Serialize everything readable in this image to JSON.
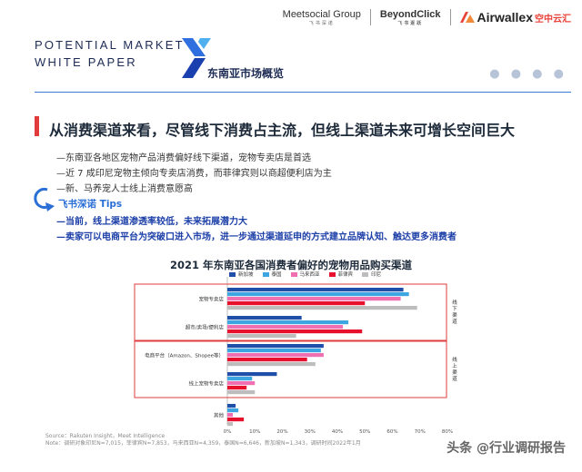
{
  "header": {
    "white_paper_line1": "POTENTIAL MARKET",
    "white_paper_line2": "WHITE PAPER",
    "section_title": "东南亚市场概览",
    "logos": {
      "meetsocial": "Meetsocial Group",
      "meetsocial_sub": "飞书深诺",
      "beyondclick": "BeyondClick",
      "beyondclick_sub": "飞书逐跃",
      "airwallex": "Airwallex",
      "airwallex_cn": "空中云汇"
    },
    "accent_color": "#3a7bd5",
    "headline_bar_color": "#e23b3b"
  },
  "headline": "从消费渠道来看，尽管线下消费占主流，但线上渠道未来可增长空间巨大",
  "bullets": [
    "—东南亚各地区宠物产品消费偏好线下渠道，宠物专卖店是首选",
    "—近 7 成印尼宠物主倾向专卖店消费，而菲律宾则以商超便利店为主",
    "—新、马养宠人士线上消费意愿高"
  ],
  "tips": {
    "label": "飞书深诺 Tips",
    "lines": [
      "—当前，线上渠道渗透率较低，未来拓展潜力大",
      "—卖家可以电商平台为突破口进入市场，进一步通过渠道延申的方式建立品牌认知、触达更多消费者"
    ]
  },
  "chart_data": {
    "type": "bar",
    "orientation": "horizontal",
    "title": "2021 年东南亚各国消费者偏好的宠物用品购买渠道",
    "categories": [
      "宠物专卖店",
      "超市/卖场/便利店",
      "电商平台（Amazon、Shopee等）",
      "线上宠物专卖店",
      "其他"
    ],
    "series": [
      {
        "name": "新加坡",
        "color": "#1f4fa8",
        "values": [
          64,
          27,
          35,
          18,
          3
        ]
      },
      {
        "name": "泰国",
        "color": "#3da5e0",
        "values": [
          66,
          44,
          34,
          9,
          4
        ]
      },
      {
        "name": "马来西亚",
        "color": "#ef6fb0",
        "values": [
          63,
          42,
          35,
          10,
          2
        ]
      },
      {
        "name": "菲律宾",
        "color": "#e8112d",
        "values": [
          50,
          49,
          29,
          7,
          6
        ]
      },
      {
        "name": "印尼",
        "color": "#bdbdbd",
        "values": [
          69,
          25,
          32,
          10,
          2
        ]
      }
    ],
    "xlim": [
      0,
      80
    ],
    "xticks": [
      "0%",
      "10%",
      "20%",
      "30%",
      "40%",
      "50%",
      "60%",
      "70%",
      "80%"
    ],
    "groups": [
      {
        "label": "线下渠道",
        "label_chars": [
          "线",
          "下",
          "渠",
          "道"
        ]
      },
      {
        "label": "线上渠道",
        "label_chars": [
          "线",
          "上",
          "渠",
          "道"
        ]
      }
    ],
    "group_box_color": "#e23b3b"
  },
  "source": {
    "line1": "Source：Rakuten Insight，Meet Intelligence",
    "line2": "Note：调研对象印尼N=7,015，菲律宾N=7,853，马来西亚N=4,359，泰国N=6,646，新加坡N=1,343，调研时间2022年1月"
  },
  "watermark": "头条 @行业调研报告"
}
